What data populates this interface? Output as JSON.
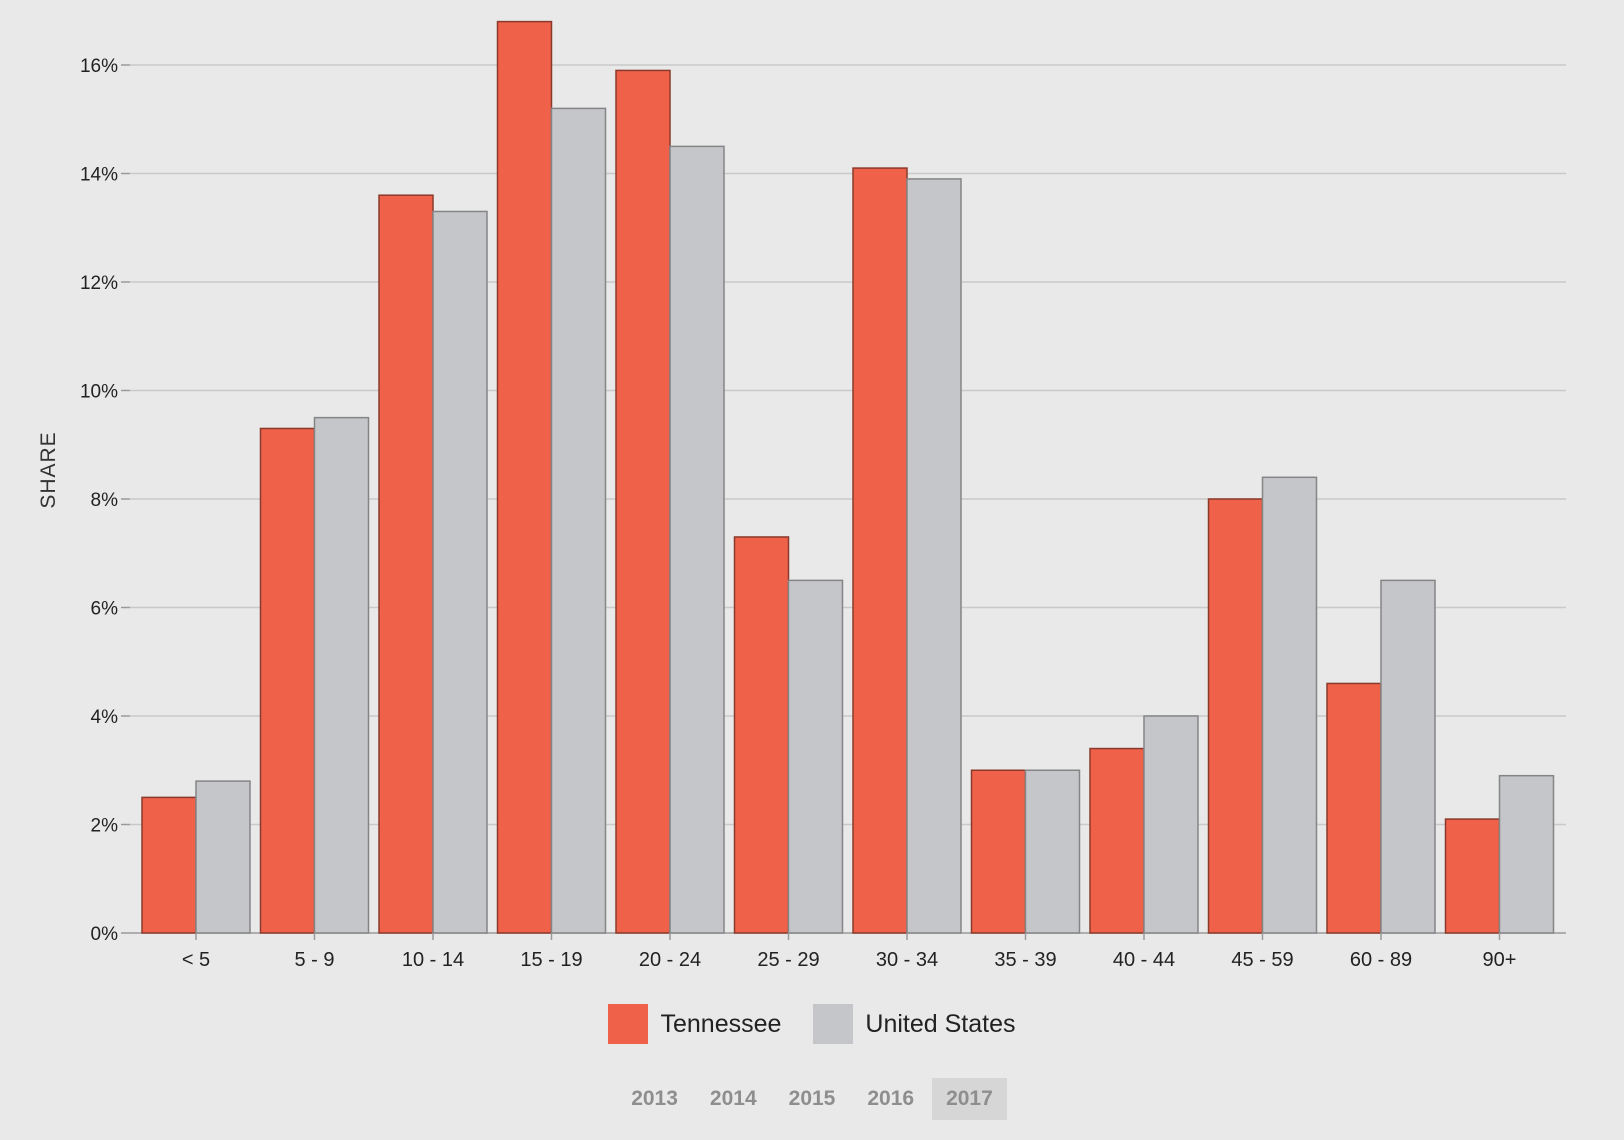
{
  "colors": {
    "tennessee": "#ef6149",
    "tennessee_stroke": "#8a3a2c",
    "united_states": "#c5c6c9",
    "united_states_stroke": "#858587",
    "grid": "#c9c9c9",
    "axis": "#9a9a9a"
  },
  "legend": {
    "items": [
      {
        "label": "Tennessee",
        "color": "#ef6149"
      },
      {
        "label": "United States",
        "color": "#c5c6c9"
      }
    ]
  },
  "years": {
    "options": [
      "2013",
      "2014",
      "2015",
      "2016",
      "2017"
    ],
    "selected": "2017"
  },
  "chart_data": {
    "type": "bar",
    "title": "",
    "xlabel": "",
    "ylabel": "SHARE",
    "ylim": [
      0,
      16
    ],
    "yticks": [
      0,
      2,
      4,
      6,
      8,
      10,
      12,
      14,
      16
    ],
    "ytick_labels": [
      "0%",
      "2%",
      "4%",
      "6%",
      "8%",
      "10%",
      "12%",
      "14%",
      "16%"
    ],
    "grid": true,
    "legend_position": "bottom-center",
    "categories": [
      "< 5",
      "5 - 9",
      "10 - 14",
      "15 - 19",
      "20 - 24",
      "25 - 29",
      "30 - 34",
      "35 - 39",
      "40 - 44",
      "45 - 59",
      "60 - 89",
      "90+"
    ],
    "series": [
      {
        "name": "Tennessee",
        "values": [
          2.5,
          9.3,
          13.6,
          16.8,
          15.9,
          7.3,
          14.1,
          3.0,
          3.4,
          8.0,
          4.6,
          2.1
        ]
      },
      {
        "name": "United States",
        "values": [
          2.8,
          9.5,
          13.3,
          15.2,
          14.5,
          6.5,
          13.9,
          3.0,
          4.0,
          8.4,
          6.5,
          2.9
        ]
      }
    ]
  }
}
